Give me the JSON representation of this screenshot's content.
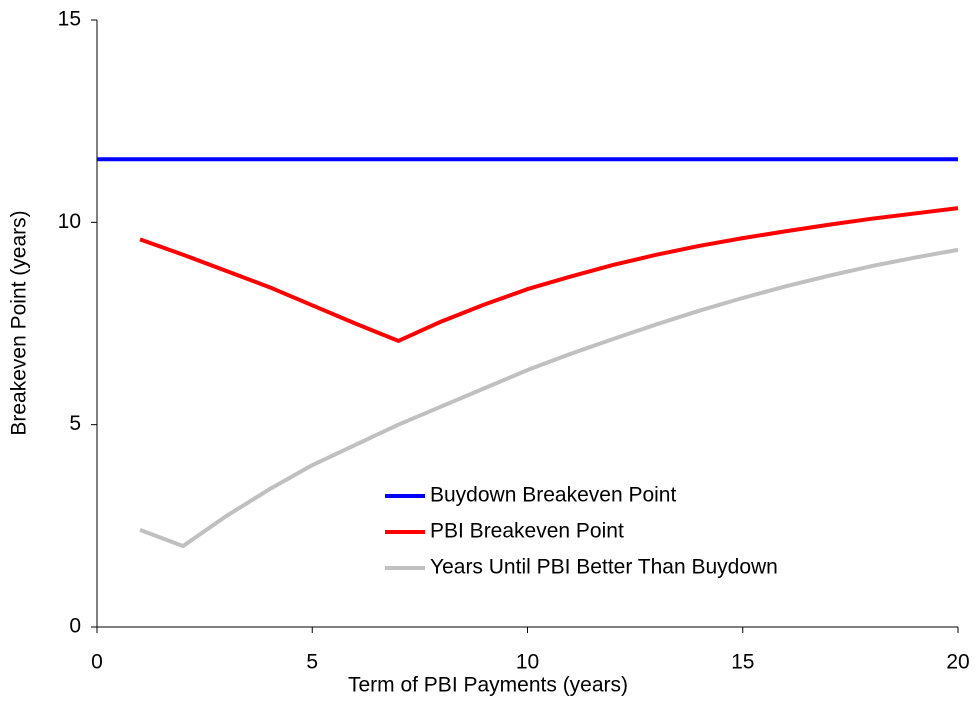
{
  "chart_data": {
    "type": "line",
    "xlabel": "Term of PBI Payments (years)",
    "ylabel": "Breakeven Point (years)",
    "xlim": [
      0,
      20
    ],
    "xticks": [
      0,
      5,
      10,
      15,
      20
    ],
    "ylim": [
      0,
      15
    ],
    "yticks": [
      0,
      5,
      10,
      15
    ],
    "grid": false,
    "legend": "lower right",
    "series": [
      {
        "name": "Buydown Breakeven Point",
        "color": "#0000ff",
        "x": [
          0,
          20
        ],
        "values": [
          11.56,
          11.56
        ]
      },
      {
        "name": "PBI Breakeven Point",
        "color": "#ff0000",
        "x": [
          1,
          2,
          3,
          4,
          5,
          6,
          7,
          8,
          9,
          10,
          11,
          12,
          13,
          14,
          15,
          16,
          17,
          18,
          19,
          20
        ],
        "values": [
          9.58,
          9.2,
          8.8,
          8.4,
          7.95,
          7.5,
          7.07,
          7.55,
          7.97,
          8.35,
          8.66,
          8.95,
          9.2,
          9.42,
          9.61,
          9.78,
          9.94,
          10.09,
          10.22,
          10.35
        ]
      },
      {
        "name": "Years Until PBI Better Than Buydown",
        "color": "#c0c0c0",
        "x": [
          1,
          2,
          3,
          4,
          5,
          6,
          7,
          8,
          9,
          10,
          11,
          12,
          13,
          14,
          15,
          16,
          17,
          18,
          19,
          20
        ],
        "values": [
          2.4,
          2.0,
          2.74,
          3.4,
          4.0,
          4.5,
          5.0,
          5.45,
          5.9,
          6.35,
          6.75,
          7.12,
          7.48,
          7.82,
          8.13,
          8.42,
          8.68,
          8.92,
          9.13,
          9.32
        ]
      }
    ]
  }
}
